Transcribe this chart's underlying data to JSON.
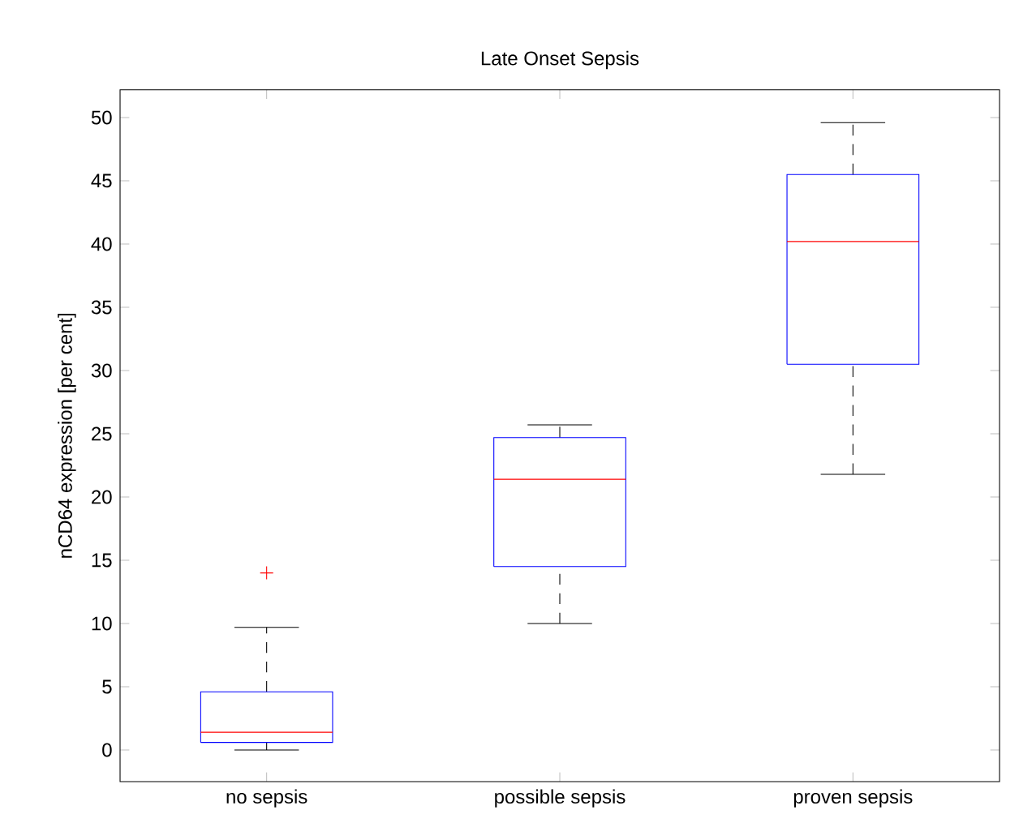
{
  "chart_data": {
    "type": "box",
    "title": "Late Onset Sepsis",
    "ylabel": "nCD64 expression [per cent]",
    "categories": [
      "no sepsis",
      "possible sepsis",
      "proven sepsis"
    ],
    "boxes": [
      {
        "low": 0,
        "q1": 0.6,
        "median": 1.4,
        "q3": 4.6,
        "high": 9.7,
        "outliers": [
          14.0
        ]
      },
      {
        "low": 10.0,
        "q1": 14.5,
        "median": 21.4,
        "q3": 24.7,
        "high": 25.7
      },
      {
        "low": 21.8,
        "q1": 30.5,
        "median": 40.2,
        "q3": 45.5,
        "high": 49.6
      }
    ],
    "color": "#0000ff",
    "ylim": [
      -2.5,
      52.2
    ],
    "yticks": [
      0,
      5,
      10,
      15,
      20,
      25,
      30,
      35,
      40,
      45,
      50
    ],
    "marker": "cross"
  }
}
